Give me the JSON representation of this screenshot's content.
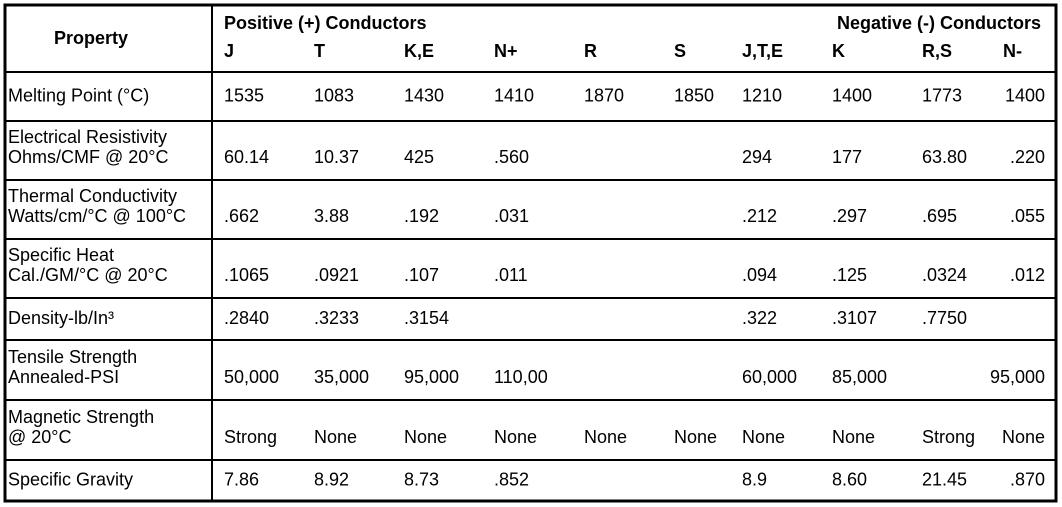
{
  "header": {
    "property": "Property",
    "positive": "Positive (+) Conductors",
    "negative": "Negative (-) Conductors",
    "columns": [
      "J",
      "T",
      "K,E",
      "N+",
      "R",
      "S",
      "J,T,E",
      "K",
      "R,S",
      "N-"
    ]
  },
  "rows": [
    {
      "label": [
        "Melting Point (°C)"
      ],
      "values": [
        "1535",
        "1083",
        "1430",
        "1410",
        "1870",
        "1850",
        "1210",
        "1400",
        "1773",
        "1400"
      ]
    },
    {
      "label": [
        "Electrical Resistivity",
        "Ohms/CMF @ 20°C"
      ],
      "values": [
        "60.14",
        "10.37",
        "425",
        ".560",
        null,
        null,
        "294",
        "177",
        "63.80",
        ".220"
      ]
    },
    {
      "label": [
        "Thermal Conductivity",
        "Watts/cm/°C @ 100°C"
      ],
      "values": [
        ".662",
        "3.88",
        ".192",
        ".031",
        null,
        null,
        ".212",
        ".297",
        ".695",
        ".055"
      ]
    },
    {
      "label": [
        "Specific Heat",
        "Cal./GM/°C @ 20°C"
      ],
      "values": [
        ".1065",
        ".0921",
        ".107",
        ".011",
        null,
        null,
        ".094",
        ".125",
        ".0324",
        ".012"
      ]
    },
    {
      "label": [
        "Density-lb/In³"
      ],
      "values": [
        ".2840",
        ".3233",
        ".3154",
        null,
        null,
        null,
        ".322",
        ".3107",
        ".7750",
        null
      ]
    },
    {
      "label": [
        "Tensile Strength",
        "Annealed-PSI"
      ],
      "values": [
        "50,000",
        "35,000",
        "95,000",
        "110,00",
        null,
        null,
        "60,000",
        "85,000",
        null,
        "95,000"
      ]
    },
    {
      "label": [
        "Magnetic Strength",
        "@ 20°C"
      ],
      "values": [
        "Strong",
        "None",
        "None",
        "None",
        "None",
        "None",
        "None",
        "None",
        "Strong",
        "None"
      ]
    },
    {
      "label": [
        "Specific Gravity"
      ],
      "values": [
        "7.86",
        "8.92",
        "8.73",
        ".852",
        null,
        null,
        "8.9",
        "8.60",
        "21.45",
        ".870"
      ]
    }
  ]
}
